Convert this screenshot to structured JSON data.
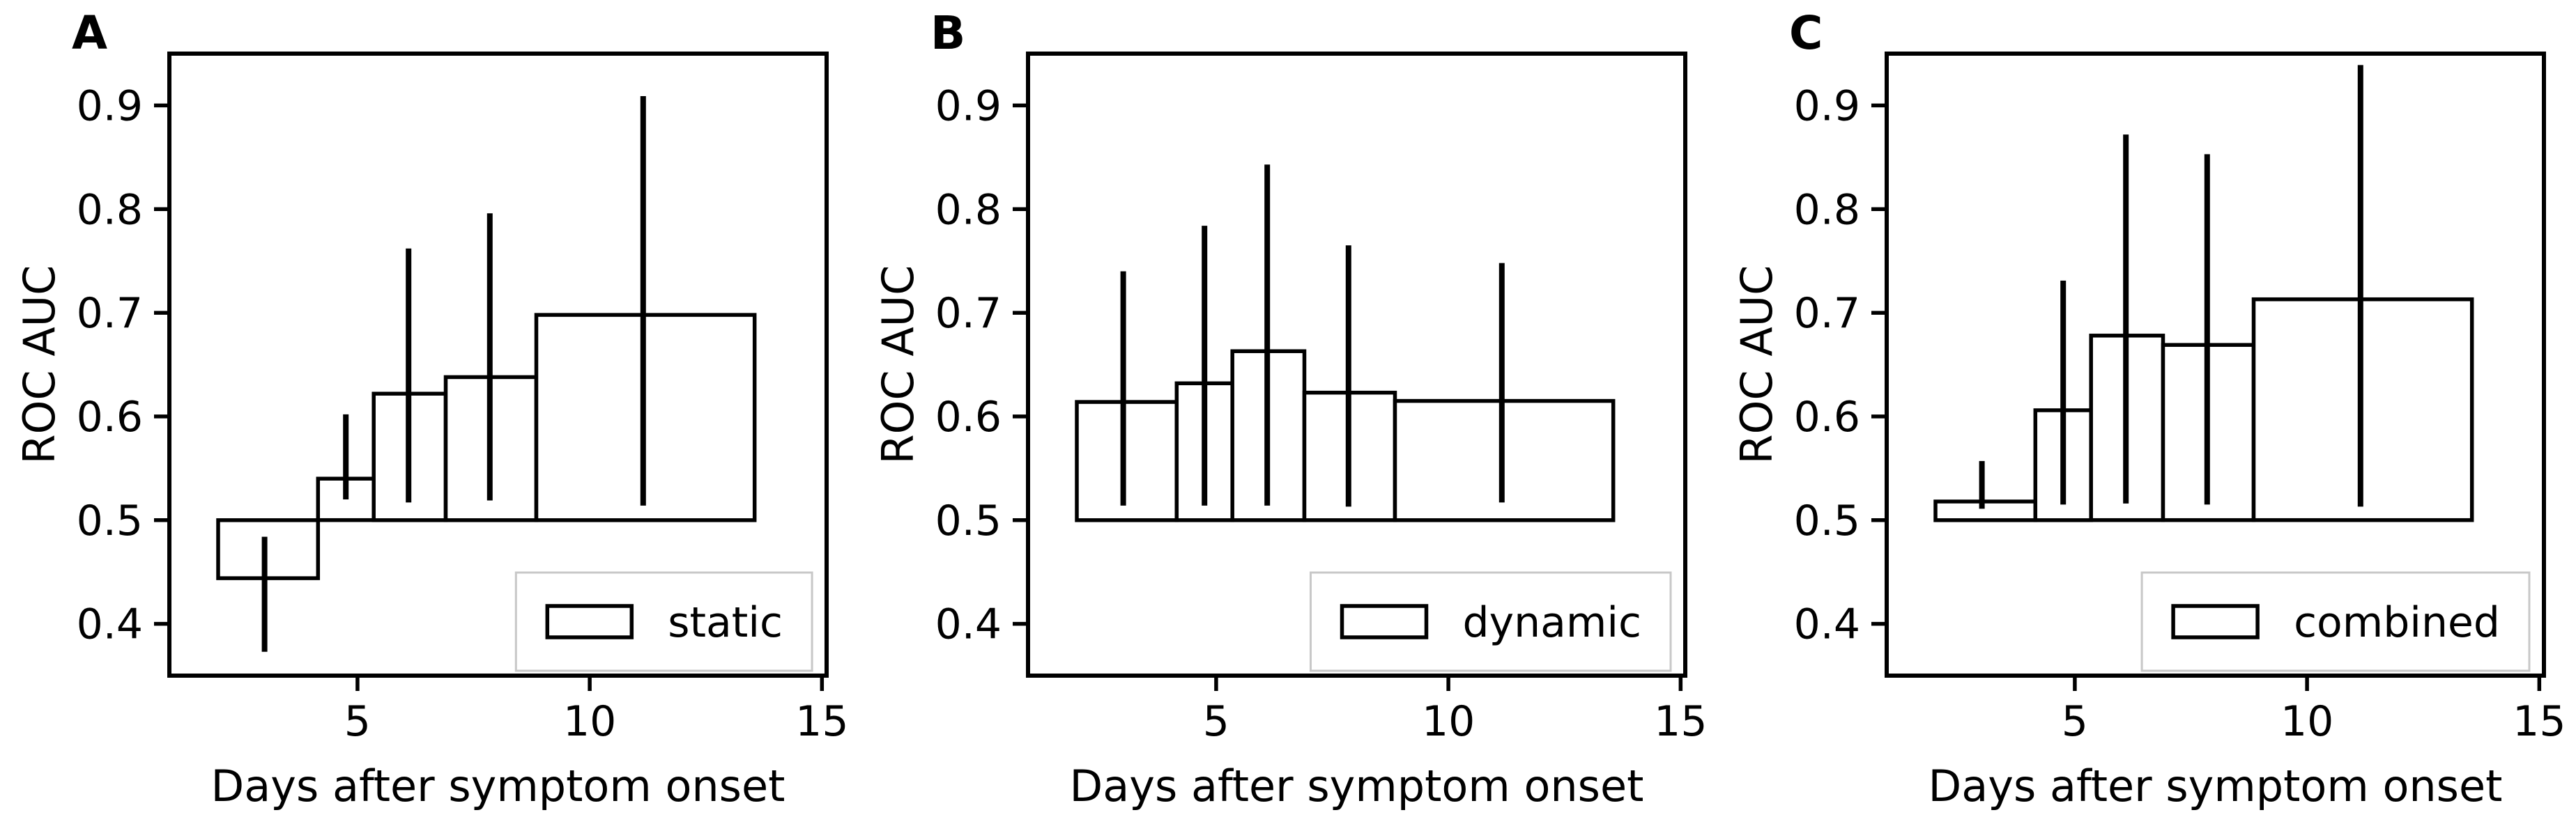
{
  "figure": {
    "xlabel": "Days after symptom onset",
    "ylabel": "ROC AUC",
    "x_tick_labels": [
      "5",
      "10",
      "15"
    ],
    "y_tick_labels": [
      "0.4",
      "0.5",
      "0.6",
      "0.7",
      "0.8",
      "0.9"
    ],
    "colors": {
      "line": "#000000",
      "text": "#000000",
      "background": "#ffffff",
      "bar_fill": "#ffffff",
      "legend_border": "#c8c8c8",
      "legend_fill": "#ffffff"
    }
  },
  "chart_data": [
    {
      "type": "bar",
      "panel_label": "A",
      "legend_label": "static",
      "legend_position": "lower right",
      "xlabel": "Days after symptom onset",
      "ylabel": "ROC AUC",
      "xlim": [
        0.95,
        15.1
      ],
      "ylim": [
        0.35,
        0.95
      ],
      "x_ticks": [
        5,
        10,
        15
      ],
      "y_ticks": [
        0.4,
        0.5,
        0.6,
        0.7,
        0.8,
        0.9
      ],
      "grid": false,
      "bar_baseline": 0.5,
      "bin_edges": [
        2.0,
        4.15,
        5.35,
        6.9,
        8.85,
        13.55
      ],
      "bin_centers": [
        3.0,
        4.75,
        6.1,
        7.85,
        11.15
      ],
      "values": [
        0.444,
        0.54,
        0.622,
        0.638,
        0.698
      ],
      "err_low": [
        0.373,
        0.52,
        0.517,
        0.519,
        0.514
      ],
      "err_high": [
        0.484,
        0.602,
        0.762,
        0.796,
        0.909
      ]
    },
    {
      "type": "bar",
      "panel_label": "B",
      "legend_label": "dynamic",
      "legend_position": "lower right",
      "xlabel": "Days after symptom onset",
      "ylabel": "ROC AUC",
      "xlim": [
        0.95,
        15.1
      ],
      "ylim": [
        0.35,
        0.95
      ],
      "x_ticks": [
        5,
        10,
        15
      ],
      "y_ticks": [
        0.4,
        0.5,
        0.6,
        0.7,
        0.8,
        0.9
      ],
      "grid": false,
      "bar_baseline": 0.5,
      "bin_edges": [
        2.0,
        4.15,
        5.35,
        6.9,
        8.85,
        13.55
      ],
      "bin_centers": [
        3.0,
        4.75,
        6.1,
        7.85,
        11.15
      ],
      "values": [
        0.614,
        0.632,
        0.663,
        0.623,
        0.615
      ],
      "err_low": [
        0.514,
        0.514,
        0.514,
        0.513,
        0.517
      ],
      "err_high": [
        0.74,
        0.784,
        0.843,
        0.765,
        0.748
      ]
    },
    {
      "type": "bar",
      "panel_label": "C",
      "legend_label": "combined",
      "legend_position": "lower right",
      "xlabel": "Days after symptom onset",
      "ylabel": "ROC AUC",
      "xlim": [
        0.95,
        15.1
      ],
      "ylim": [
        0.35,
        0.95
      ],
      "x_ticks": [
        5,
        10,
        15
      ],
      "y_ticks": [
        0.4,
        0.5,
        0.6,
        0.7,
        0.8,
        0.9
      ],
      "grid": false,
      "bar_baseline": 0.5,
      "bin_edges": [
        2.0,
        4.15,
        5.35,
        6.9,
        8.85,
        13.55
      ],
      "bin_centers": [
        3.0,
        4.75,
        6.1,
        7.85,
        11.15
      ],
      "values": [
        0.518,
        0.606,
        0.678,
        0.669,
        0.713
      ],
      "err_low": [
        0.511,
        0.515,
        0.516,
        0.515,
        0.513
      ],
      "err_high": [
        0.557,
        0.731,
        0.872,
        0.853,
        0.939
      ]
    }
  ]
}
